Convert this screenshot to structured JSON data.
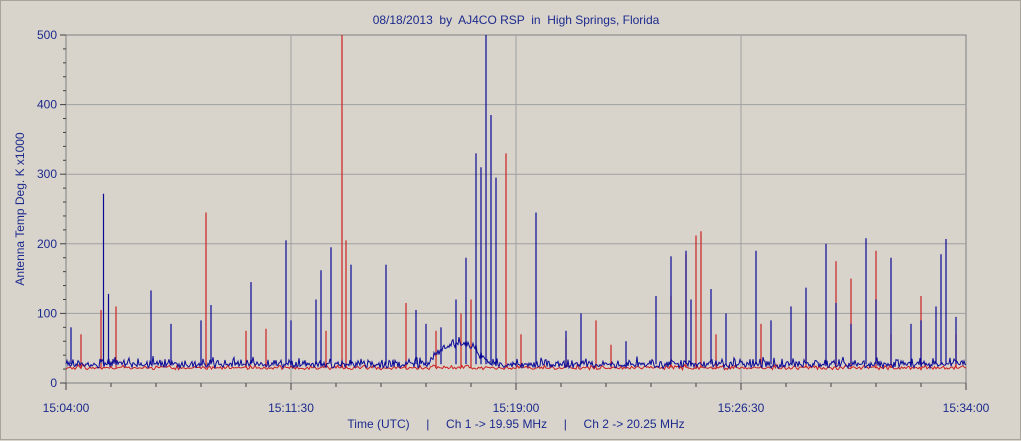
{
  "chart_data": {
    "type": "line",
    "title": "08/18/2013  by  AJ4CO RSP  in  High Springs, Florida",
    "ylabel": "Antenna Temp Deg. K x1000",
    "xlabel": "Time (UTC)     |     Ch 1 -> 19.95 MHz     |     Ch 2 -> 20.25 MHz",
    "ylim": [
      0,
      500
    ],
    "y_ticks": [
      "0",
      "100",
      "200",
      "300",
      "400",
      "500"
    ],
    "x_range": [
      "15:04:00",
      "15:34:00"
    ],
    "x_ticks": [
      "15:04:00",
      "15:11:30",
      "15:19:00",
      "15:26:30",
      "15:34:00"
    ],
    "grid": true,
    "colors": {
      "ch1": "#cc2020",
      "ch2": "#0a0a96",
      "grid": "#a0a0a0",
      "text": "#1c2a8c"
    },
    "series": [
      {
        "name": "Ch 1 -> 19.95 MHz",
        "color": "#cc2020",
        "baseline": 22,
        "x": [
          "15:04:30",
          "15:05:10",
          "15:05:40",
          "15:08:40",
          "15:10:00",
          "15:10:40",
          "15:12:40",
          "15:13:12",
          "15:13:20",
          "15:15:20",
          "15:16:20",
          "15:17:10",
          "15:17:30",
          "15:18:40",
          "15:19:10",
          "15:20:40",
          "15:21:40",
          "15:22:10",
          "15:24:10",
          "15:24:40",
          "15:25:00",
          "15:25:10",
          "15:25:40",
          "15:27:10",
          "15:28:40",
          "15:29:40",
          "15:30:10",
          "15:31:00",
          "15:31:30",
          "15:32:30",
          "15:33:40"
        ],
        "y": [
          70,
          105,
          110,
          245,
          75,
          78,
          75,
          500,
          205,
          115,
          75,
          100,
          120,
          330,
          70,
          65,
          90,
          55,
          125,
          185,
          212,
          218,
          70,
          85,
          100,
          175,
          150,
          190,
          70,
          125,
          70
        ]
      },
      {
        "name": "Ch 2 -> 20.25 MHz",
        "color": "#0a0a96",
        "baseline": 27,
        "x": [
          "15:04:10",
          "15:05:15",
          "15:05:25",
          "15:06:50",
          "15:07:30",
          "15:08:30",
          "15:08:50",
          "15:10:10",
          "15:11:20",
          "15:11:30",
          "15:12:20",
          "15:12:30",
          "15:12:50",
          "15:13:30",
          "15:14:40",
          "15:15:40",
          "15:16:00",
          "15:16:30",
          "15:17:00",
          "15:17:20",
          "15:17:40",
          "15:17:50",
          "15:18:00",
          "15:18:10",
          "15:18:20",
          "15:19:40",
          "15:20:40",
          "15:21:10",
          "15:22:40",
          "15:23:40",
          "15:24:10",
          "15:24:40",
          "15:24:50",
          "15:25:30",
          "15:26:00",
          "15:27:00",
          "15:27:30",
          "15:28:10",
          "15:28:40",
          "15:29:20",
          "15:29:40",
          "15:30:10",
          "15:30:40",
          "15:31:00",
          "15:31:30",
          "15:32:10",
          "15:32:30",
          "15:33:00",
          "15:33:10",
          "15:33:20",
          "15:33:40"
        ],
        "y": [
          80,
          272,
          128,
          133,
          85,
          90,
          112,
          145,
          205,
          90,
          120,
          162,
          195,
          170,
          170,
          105,
          85,
          80,
          120,
          180,
          330,
          310,
          500,
          385,
          295,
          245,
          75,
          100,
          60,
          125,
          182,
          190,
          120,
          135,
          100,
          190,
          90,
          110,
          137,
          200,
          115,
          85,
          208,
          120,
          180,
          85,
          90,
          110,
          185,
          207,
          95
        ]
      }
    ]
  }
}
